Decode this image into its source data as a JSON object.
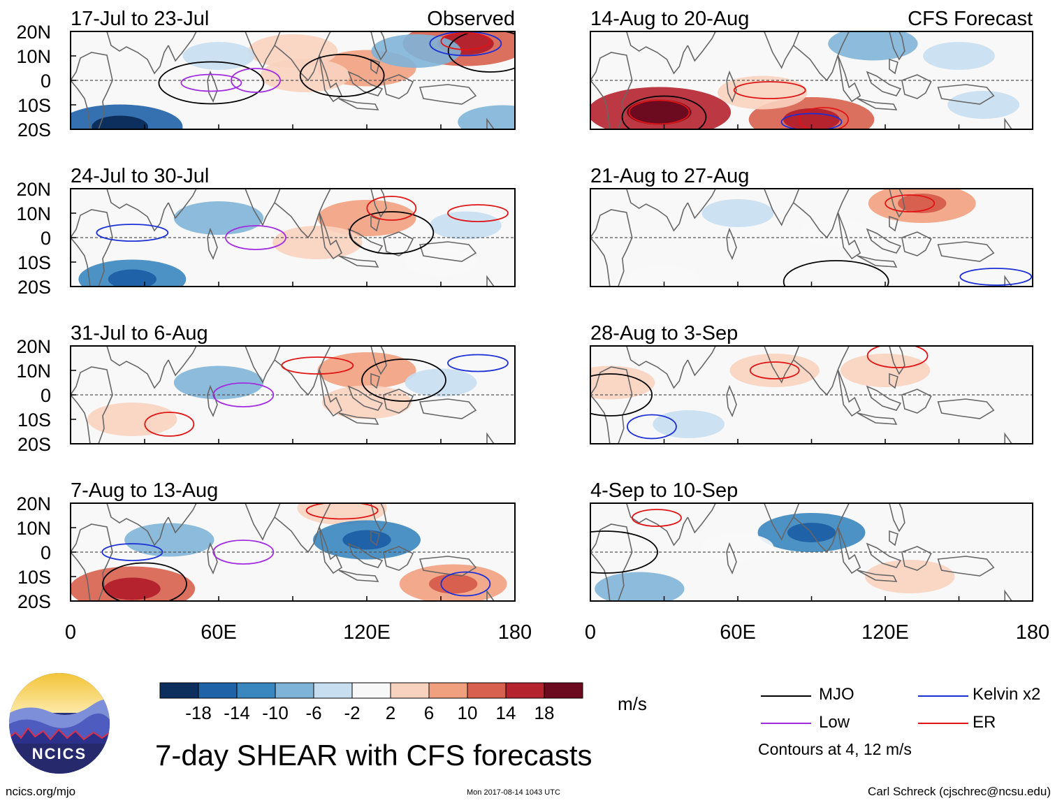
{
  "title": "7-day SHEAR with CFS forecasts",
  "footer": {
    "site": "ncics.org/mjo",
    "timestamp": "Mon 2017-08-14 1043 UTC",
    "credit": "Carl Schreck (cjschrec@ncsu.edu)"
  },
  "logo": {
    "text": "NCICS"
  },
  "column_labels": {
    "observed": "Observed",
    "forecast": "CFS Forecast"
  },
  "colorbar": {
    "units": "m/s",
    "tick_labels": [
      "-18",
      "-14",
      "-10",
      "-6",
      "-2",
      "2",
      "6",
      "10",
      "14",
      "18"
    ],
    "colors": [
      "#0d2f5e",
      "#1f62a8",
      "#3a86bf",
      "#7fb4d8",
      "#c6def0",
      "#f8f8f8",
      "#f9d2bf",
      "#f1a07f",
      "#d8604e",
      "#b5232f",
      "#6c0a1f"
    ]
  },
  "legend": {
    "items": [
      {
        "label": "MJO",
        "color": "#000000"
      },
      {
        "label": "Kelvin x2",
        "color": "#1a2fd6"
      },
      {
        "label": "Low",
        "color": "#a22be0"
      },
      {
        "label": "ER",
        "color": "#e01414"
      }
    ],
    "note": "Contours at 4, 12 m/s"
  },
  "chart_data": {
    "type": "heatmap",
    "variable": "7-day vertical wind shear anomaly",
    "units": "m/s",
    "contour_levels": [
      4,
      12
    ],
    "x_axis": {
      "range": [
        0,
        180
      ],
      "ticks": [
        0,
        60,
        120,
        180
      ],
      "tick_labels": [
        "0",
        "60E",
        "120E",
        "180"
      ]
    },
    "y_axis": {
      "range": [
        -20,
        20
      ],
      "ticks": [
        20,
        10,
        0,
        -10,
        -20
      ],
      "tick_labels": [
        "20N",
        "10N",
        "0",
        "10S",
        "20S"
      ]
    },
    "panels": [
      {
        "period": "17-Jul to 23-Jul",
        "kind": "Observed",
        "anomalies": [
          {
            "lon": 160,
            "lat": 15,
            "value": 14
          },
          {
            "lon": 120,
            "lat": 5,
            "value": 8
          },
          {
            "lon": 95,
            "lat": 2,
            "value": 6
          },
          {
            "lon": 90,
            "lat": 12,
            "value": 6
          },
          {
            "lon": 140,
            "lat": 12,
            "value": -6
          },
          {
            "lon": 20,
            "lat": -19,
            "value": -14
          },
          {
            "lon": 60,
            "lat": 10,
            "value": -2
          },
          {
            "lon": 175,
            "lat": -17,
            "value": -6
          }
        ],
        "contours": [
          {
            "wave": "MJO",
            "lon": 110,
            "lat": 2
          },
          {
            "wave": "MJO",
            "lon": 57,
            "lat": -1
          },
          {
            "wave": "MJO",
            "lon": 170,
            "lat": 12
          },
          {
            "wave": "Low",
            "lon": 75,
            "lat": 0
          },
          {
            "wave": "Low",
            "lon": 57,
            "lat": -1
          },
          {
            "wave": "Kelvin x2",
            "lon": 160,
            "lat": 15
          },
          {
            "wave": "ER",
            "lon": 160,
            "lat": 16
          }
        ]
      },
      {
        "period": "24-Jul to 30-Jul",
        "kind": "Observed",
        "anomalies": [
          {
            "lon": 120,
            "lat": 8,
            "value": 8
          },
          {
            "lon": 100,
            "lat": -2,
            "value": 6
          },
          {
            "lon": 25,
            "lat": -17,
            "value": -10
          },
          {
            "lon": 60,
            "lat": 8,
            "value": -6
          },
          {
            "lon": 150,
            "lat": -10,
            "value": 2
          },
          {
            "lon": 160,
            "lat": 5,
            "value": -2
          }
        ],
        "contours": [
          {
            "wave": "MJO",
            "lon": 130,
            "lat": 2
          },
          {
            "wave": "Low",
            "lon": 75,
            "lat": 0
          },
          {
            "wave": "Kelvin x2",
            "lon": 25,
            "lat": 2
          },
          {
            "wave": "ER",
            "lon": 130,
            "lat": 12
          },
          {
            "wave": "ER",
            "lon": 165,
            "lat": 10
          }
        ]
      },
      {
        "period": "31-Jul to 6-Aug",
        "kind": "Observed",
        "anomalies": [
          {
            "lon": 120,
            "lat": 10,
            "value": 8
          },
          {
            "lon": 120,
            "lat": -3,
            "value": 6
          },
          {
            "lon": 25,
            "lat": -10,
            "value": 6
          },
          {
            "lon": 60,
            "lat": 5,
            "value": -6
          },
          {
            "lon": 150,
            "lat": 5,
            "value": -2
          }
        ],
        "contours": [
          {
            "wave": "MJO",
            "lon": 135,
            "lat": 6
          },
          {
            "wave": "Low",
            "lon": 70,
            "lat": 0
          },
          {
            "wave": "ER",
            "lon": 100,
            "lat": 12
          },
          {
            "wave": "ER",
            "lon": 40,
            "lat": -12
          },
          {
            "wave": "Kelvin x2",
            "lon": 165,
            "lat": 13
          }
        ]
      },
      {
        "period": "7-Aug to 13-Aug",
        "kind": "Observed",
        "anomalies": [
          {
            "lon": 25,
            "lat": -15,
            "value": 14
          },
          {
            "lon": 155,
            "lat": -13,
            "value": 10
          },
          {
            "lon": 110,
            "lat": 18,
            "value": 6
          },
          {
            "lon": 120,
            "lat": 5,
            "value": -10
          },
          {
            "lon": 40,
            "lat": 5,
            "value": -6
          }
        ],
        "contours": [
          {
            "wave": "MJO",
            "lon": 30,
            "lat": -13
          },
          {
            "wave": "Low",
            "lon": 70,
            "lat": 0
          },
          {
            "wave": "ER",
            "lon": 110,
            "lat": 17
          },
          {
            "wave": "Kelvin x2",
            "lon": 160,
            "lat": -13
          },
          {
            "wave": "Kelvin x2",
            "lon": 25,
            "lat": 0
          }
        ]
      },
      {
        "period": "14-Aug to 20-Aug",
        "kind": "CFS Forecast",
        "anomalies": [
          {
            "lon": 28,
            "lat": -13,
            "value": 18
          },
          {
            "lon": 90,
            "lat": -16,
            "value": 14
          },
          {
            "lon": 70,
            "lat": -5,
            "value": 6
          },
          {
            "lon": 115,
            "lat": 15,
            "value": -6
          },
          {
            "lon": 150,
            "lat": 10,
            "value": -2
          },
          {
            "lon": 160,
            "lat": -10,
            "value": -2
          }
        ],
        "contours": [
          {
            "wave": "MJO",
            "lon": 30,
            "lat": -15
          },
          {
            "wave": "ER",
            "lon": 28,
            "lat": -13
          },
          {
            "wave": "ER",
            "lon": 73,
            "lat": -4
          },
          {
            "wave": "ER",
            "lon": 95,
            "lat": -16
          },
          {
            "wave": "Kelvin x2",
            "lon": 90,
            "lat": -17
          }
        ]
      },
      {
        "period": "21-Aug to 27-Aug",
        "kind": "CFS Forecast",
        "anomalies": [
          {
            "lon": 135,
            "lat": 14,
            "value": 10
          },
          {
            "lon": 60,
            "lat": 10,
            "value": -2
          },
          {
            "lon": 100,
            "lat": 2,
            "value": 2
          },
          {
            "lon": 30,
            "lat": -17,
            "value": 2
          }
        ],
        "contours": [
          {
            "wave": "ER",
            "lon": 130,
            "lat": 14
          },
          {
            "wave": "MJO",
            "lon": 100,
            "lat": -18
          },
          {
            "wave": "Kelvin x2",
            "lon": 165,
            "lat": -16
          }
        ]
      },
      {
        "period": "28-Aug to 3-Sep",
        "kind": "CFS Forecast",
        "anomalies": [
          {
            "lon": 8,
            "lat": 5,
            "value": 6
          },
          {
            "lon": 75,
            "lat": 10,
            "value": 6
          },
          {
            "lon": 120,
            "lat": 10,
            "value": 6
          },
          {
            "lon": 40,
            "lat": -12,
            "value": -2
          }
        ],
        "contours": [
          {
            "wave": "ER",
            "lon": 75,
            "lat": 10
          },
          {
            "wave": "ER",
            "lon": 125,
            "lat": 16
          },
          {
            "wave": "MJO",
            "lon": 8,
            "lat": 0
          },
          {
            "wave": "Kelvin x2",
            "lon": 25,
            "lat": -13
          }
        ]
      },
      {
        "period": "4-Sep to 10-Sep",
        "kind": "CFS Forecast",
        "anomalies": [
          {
            "lon": 90,
            "lat": 8,
            "value": -10
          },
          {
            "lon": 20,
            "lat": -15,
            "value": -6
          },
          {
            "lon": 130,
            "lat": -10,
            "value": 6
          },
          {
            "lon": 60,
            "lat": 2,
            "value": 2
          }
        ],
        "contours": [
          {
            "wave": "ER",
            "lon": 27,
            "lat": 14
          },
          {
            "wave": "MJO",
            "lon": 6,
            "lat": 0
          }
        ]
      }
    ]
  }
}
